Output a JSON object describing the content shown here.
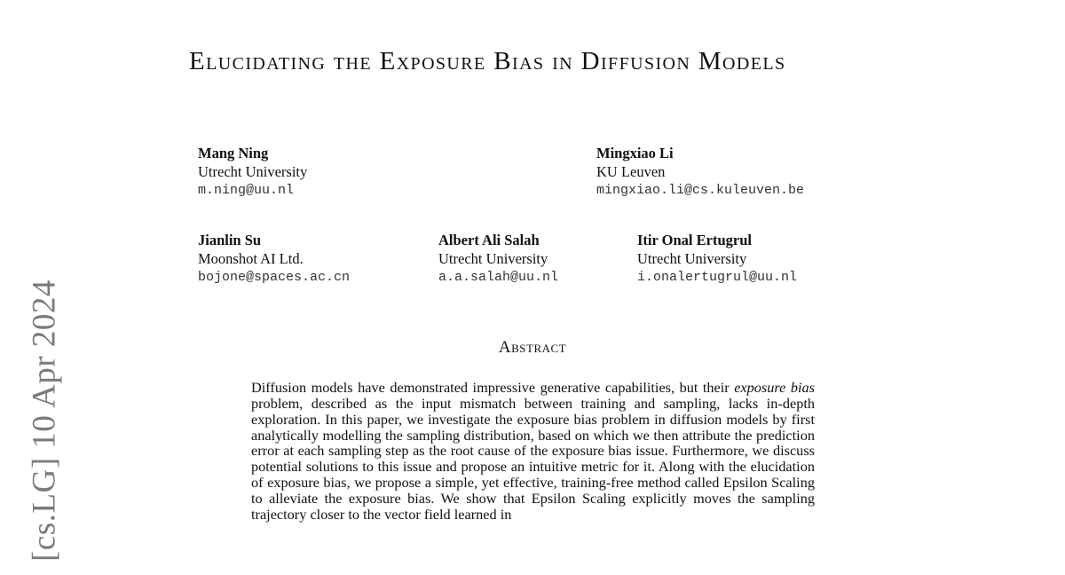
{
  "title": "Elucidating the Exposure Bias in Diffusion Models",
  "authors": [
    {
      "name": "Mang Ning",
      "affiliation": "Utrecht University",
      "email": "m.ning@uu.nl"
    },
    {
      "name": "Mingxiao Li",
      "affiliation": "KU Leuven",
      "email": "mingxiao.li@cs.kuleuven.be"
    },
    {
      "name": "Jianlin Su",
      "affiliation": "Moonshot AI Ltd.",
      "email": "bojone@spaces.ac.cn"
    },
    {
      "name": "Albert Ali Salah",
      "affiliation": "Utrecht University",
      "email": "a.a.salah@uu.nl"
    },
    {
      "name": "Itir Onal Ertugrul",
      "affiliation": "Utrecht University",
      "email": "i.onalertugrul@uu.nl"
    }
  ],
  "abstract": {
    "heading": "Abstract",
    "text_before_italic": "Diffusion models have demonstrated impressive generative capabilities, but their ",
    "italic": "exposure bias",
    "text_after_italic": " problem, described as the input mismatch between training and sampling, lacks in-depth exploration. In this paper, we investigate the exposure bias problem in diffusion models by first analytically modelling the sampling dis­tribution, based on which we then attribute the prediction error at each sampling step as the root cause of the exposure bias issue. Furthermore, we discuss potential solutions to this issue and propose an intuitive metric for it. Along with the eluci­dation of exposure bias, we propose a simple, yet effective, training-free method called Epsilon Scaling to alleviate the exposure bias. We show that Epsilon Scal­ing explicitly moves the sampling trajectory closer to the vector field learned in"
  },
  "arxiv_stamp": "[cs.LG]  10 Apr 2024"
}
